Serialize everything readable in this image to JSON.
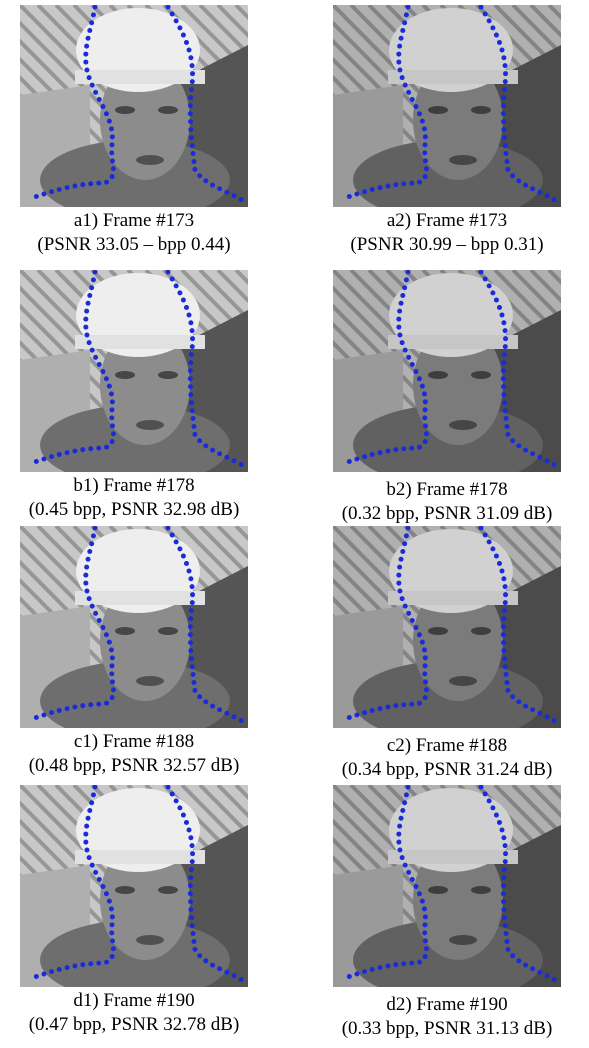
{
  "panels": [
    {
      "label": "a1) Frame #173",
      "detail": "(PSNR 33.05 – bpp 0.44)"
    },
    {
      "label": "a2) Frame #173",
      "detail": "(PSNR 30.99 – bpp 0.31)"
    },
    {
      "label": "b1) Frame #178",
      "detail": "(0.45 bpp, PSNR 32.98 dB)"
    },
    {
      "label": "b2) Frame #178",
      "detail": "(0.32 bpp, PSNR 31.09 dB)"
    },
    {
      "label": "c1) Frame #188",
      "detail": "(0.48 bpp, PSNR 32.57 dB)"
    },
    {
      "label": "c2) Frame #188",
      "detail": "(0.34 bpp, PSNR 31.24 dB)"
    },
    {
      "label": "d1) Frame #190",
      "detail": "(0.47 bpp, PSNR 32.78 dB)"
    },
    {
      "label": "d2) Frame #190",
      "detail": "(0.33 bpp, PSNR 31.13 dB)"
    }
  ]
}
